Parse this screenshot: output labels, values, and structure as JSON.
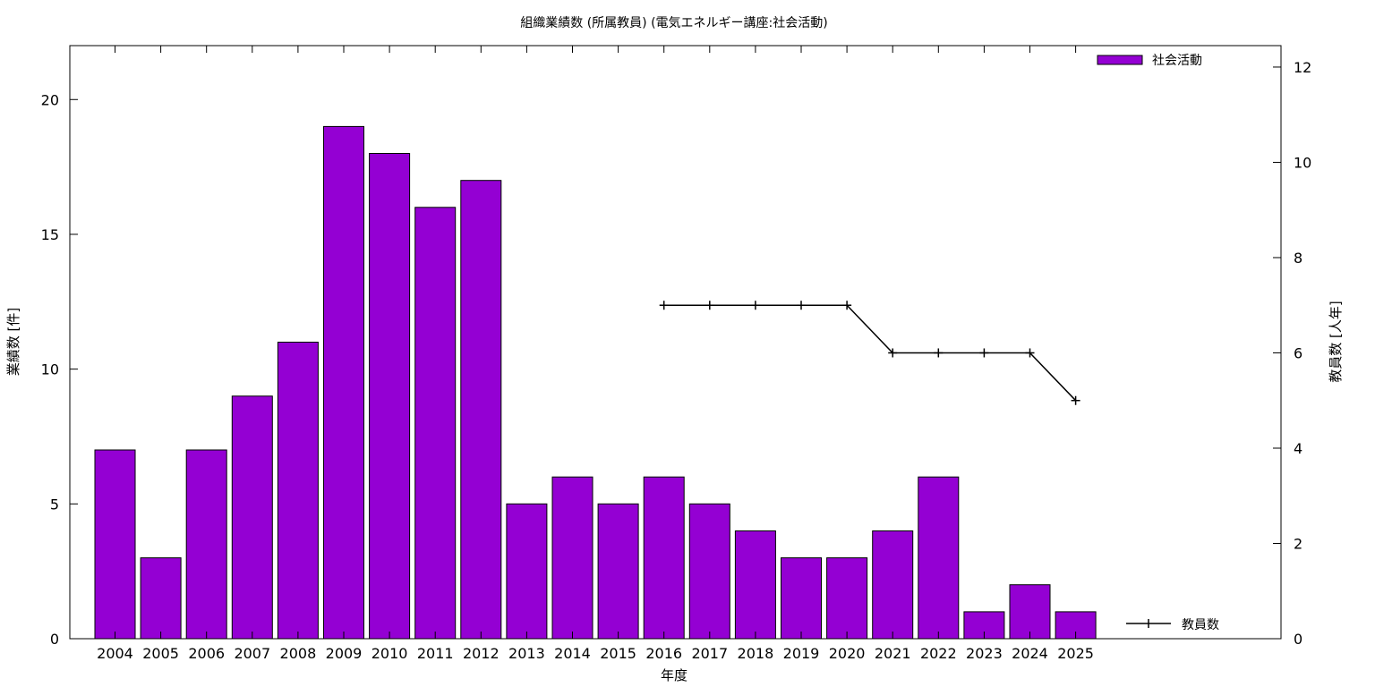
{
  "chart_data": {
    "type": "bar",
    "title": "組織業績数 (所属教員) (電気エネルギー講座:社会活動)",
    "xlabel": "年度",
    "ylabel": "業績数 [件]",
    "y2label": "教員数 [人年]",
    "categories": [
      "2004",
      "2005",
      "2006",
      "2007",
      "2008",
      "2009",
      "2010",
      "2011",
      "2012",
      "2013",
      "2014",
      "2015",
      "2016",
      "2017",
      "2018",
      "2019",
      "2020",
      "2021",
      "2022",
      "2023",
      "2024",
      "2025"
    ],
    "series": [
      {
        "name": "社会活動",
        "type": "bar",
        "axis": "y",
        "color": "#9400D3",
        "values": [
          7,
          3,
          7,
          9,
          11,
          19,
          18,
          16,
          17,
          5,
          6,
          5,
          6,
          5,
          4,
          3,
          3,
          4,
          6,
          1,
          2,
          1
        ]
      },
      {
        "name": "教員数",
        "type": "line",
        "axis": "y2",
        "color": "#000000",
        "values": [
          null,
          null,
          null,
          null,
          null,
          null,
          null,
          null,
          null,
          null,
          null,
          null,
          7,
          7,
          7,
          7,
          7,
          6,
          6,
          6,
          6,
          5
        ]
      }
    ],
    "ylim": [
      0,
      22
    ],
    "y2lim": [
      0,
      12.45
    ],
    "yticks": [
      0,
      5,
      10,
      15,
      20
    ],
    "y2ticks": [
      0,
      2,
      4,
      6,
      8,
      10,
      12
    ],
    "grid": false,
    "legend": "top-right (bars), bottom-right (line)"
  }
}
